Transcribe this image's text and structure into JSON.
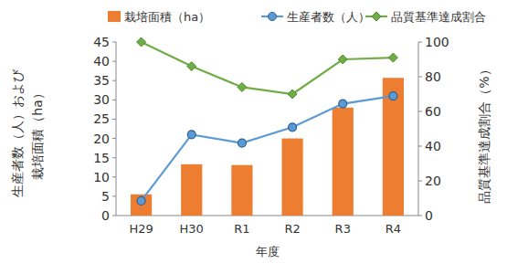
{
  "chart_data": {
    "type": "bar",
    "categories": [
      "H29",
      "H30",
      "R1",
      "R2",
      "R3",
      "R4"
    ],
    "xlabel": "年度",
    "ylabel": [
      "生産者数（人）および",
      "栽培面積（ha）"
    ],
    "y2label": "品質基準達成割合（%）",
    "ylim": [
      0,
      45
    ],
    "yticks": [
      0,
      5,
      10,
      15,
      20,
      25,
      30,
      35,
      40,
      45
    ],
    "y2lim": [
      0,
      100
    ],
    "y2ticks": [
      0,
      20,
      40,
      60,
      80,
      100
    ],
    "legend": "top",
    "grid": false,
    "series": [
      {
        "name": "栽培面積（ha）",
        "type": "bar",
        "color": "#ed7d31",
        "values": [
          5.5,
          13.3,
          13.1,
          20.0,
          28.0,
          35.7
        ]
      },
      {
        "name": "生産者数（人）",
        "type": "line",
        "color": "#5b9bd5",
        "marker": "circle",
        "values": [
          3.8,
          21.0,
          18.8,
          22.9,
          29.0,
          31.0
        ]
      },
      {
        "name": "品質基準達成割合",
        "type": "line",
        "axis": "y2",
        "color": "#70ad47",
        "marker": "diamond",
        "values": [
          100,
          86,
          74,
          70,
          90,
          91
        ]
      }
    ]
  }
}
